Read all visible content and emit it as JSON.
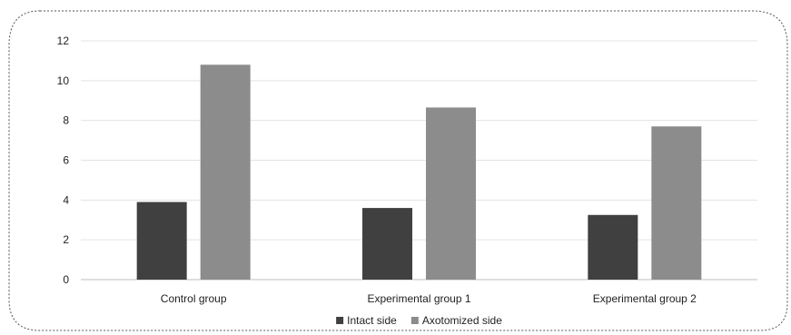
{
  "chart_data": {
    "type": "bar",
    "categories": [
      "Control group",
      "Experimental group 1",
      "Experimental group 2"
    ],
    "series": [
      {
        "name": "Intact side",
        "values": [
          3.9,
          3.6,
          3.25
        ],
        "color": "#404040"
      },
      {
        "name": "Axotomized side",
        "values": [
          10.8,
          8.65,
          7.7
        ],
        "color": "#8c8c8c"
      }
    ],
    "yticks": [
      "0",
      "2",
      "4",
      "6",
      "8",
      "10",
      "12"
    ],
    "ylim": [
      0,
      12
    ],
    "grid": true,
    "legend": "bottom",
    "title": "",
    "xlabel": "",
    "ylabel": ""
  }
}
